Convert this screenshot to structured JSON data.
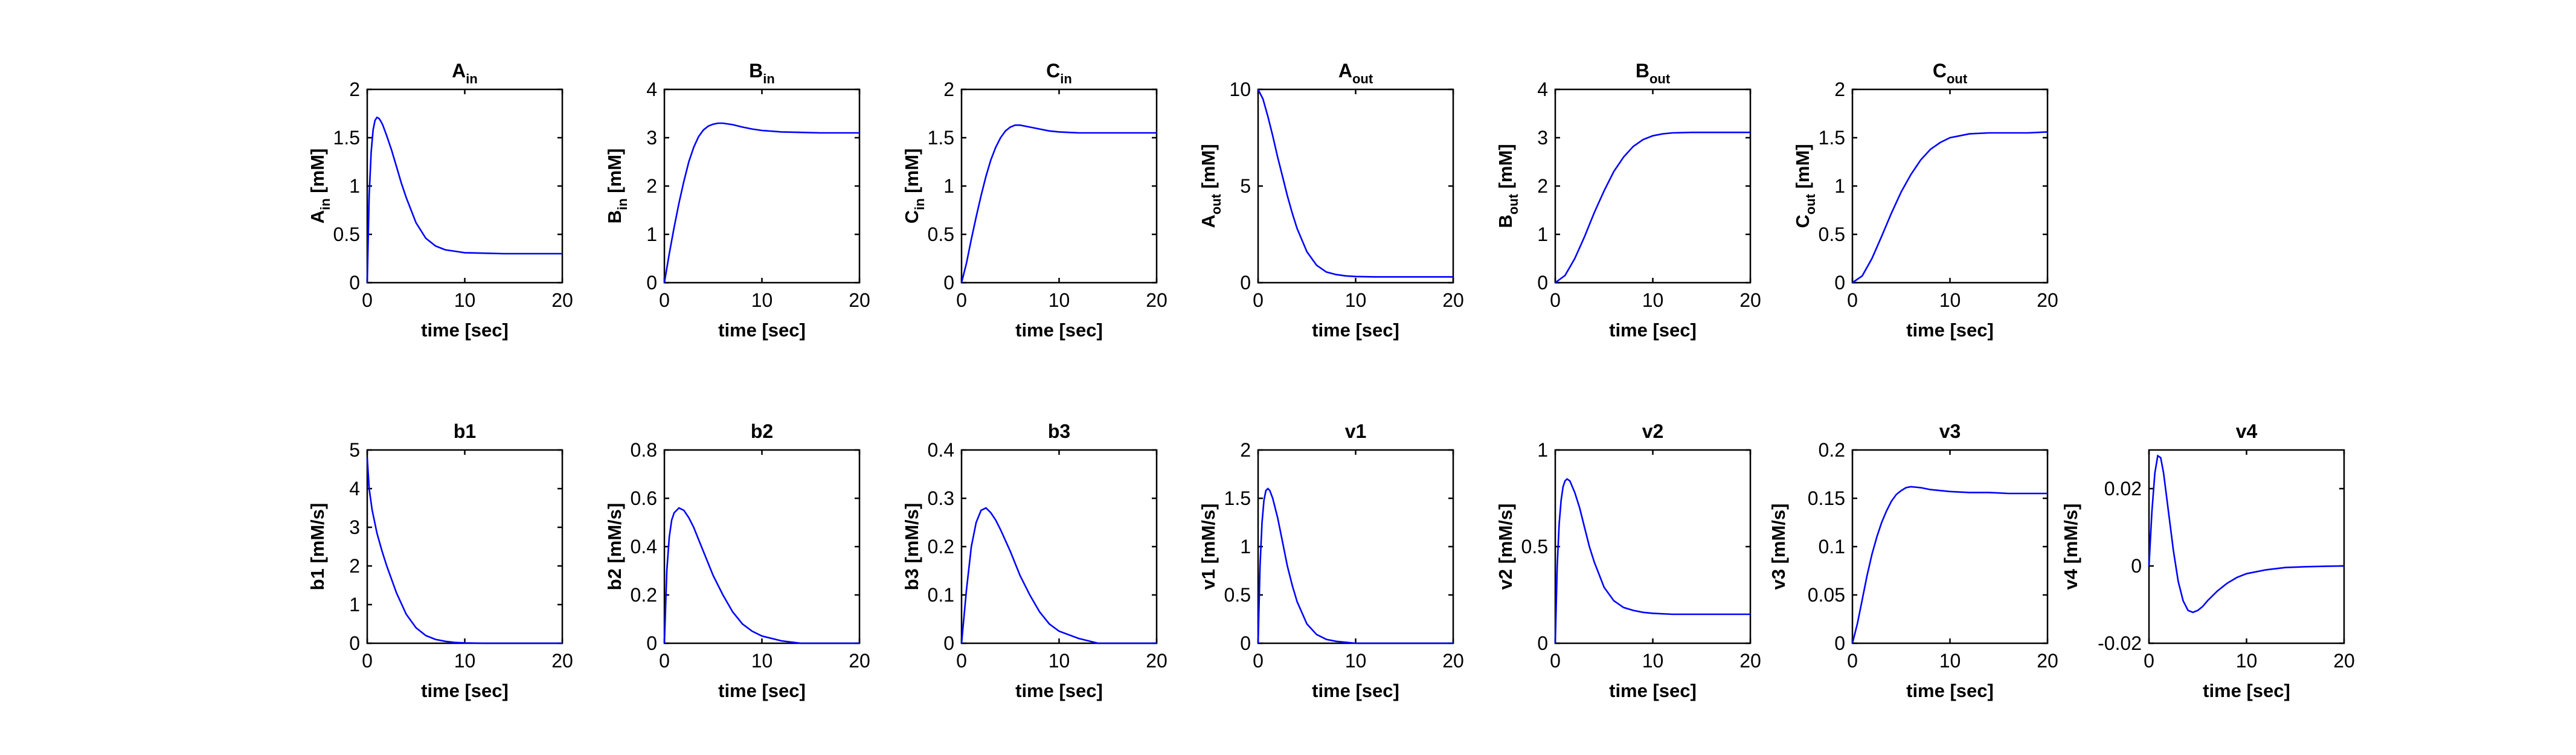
{
  "chart_data": [
    {
      "type": "line",
      "title": "A",
      "title_sub": "in",
      "xlabel": "time [sec]",
      "ylabel": "A",
      "ylabel_sub": "in",
      "ylabel_unit": " [mM]",
      "xlim": [
        0,
        20
      ],
      "ylim": [
        0,
        2
      ],
      "xticks": [
        "0",
        "10",
        "20"
      ],
      "yticks": [
        "0",
        "0.5",
        "1",
        "1.5",
        "2"
      ],
      "series": [
        {
          "x": [
            0,
            0.2,
            0.4,
            0.6,
            0.8,
            1,
            1.2,
            1.4,
            1.6,
            2,
            2.5,
            3,
            3.5,
            4,
            5,
            6,
            7,
            8,
            9,
            10,
            12,
            14,
            16,
            18,
            20
          ],
          "y": [
            0,
            0.9,
            1.35,
            1.58,
            1.68,
            1.71,
            1.7,
            1.67,
            1.63,
            1.52,
            1.37,
            1.2,
            1.03,
            0.88,
            0.62,
            0.46,
            0.38,
            0.34,
            0.325,
            0.31,
            0.305,
            0.3,
            0.3,
            0.3,
            0.3
          ]
        }
      ]
    },
    {
      "type": "line",
      "title": "B",
      "title_sub": "in",
      "xlabel": "time [sec]",
      "ylabel": "B",
      "ylabel_sub": "in",
      "ylabel_unit": " [mM]",
      "xlim": [
        0,
        20
      ],
      "ylim": [
        0,
        4
      ],
      "xticks": [
        "0",
        "10",
        "20"
      ],
      "yticks": [
        "0",
        "1",
        "2",
        "3",
        "4"
      ],
      "series": [
        {
          "x": [
            0,
            0.5,
            1,
            1.5,
            2,
            2.5,
            3,
            3.5,
            4,
            4.5,
            5,
            5.5,
            6,
            7,
            8,
            9,
            10,
            12,
            14,
            16,
            18,
            20
          ],
          "y": [
            0,
            0.6,
            1.15,
            1.65,
            2.1,
            2.5,
            2.8,
            3.02,
            3.16,
            3.24,
            3.28,
            3.3,
            3.3,
            3.27,
            3.22,
            3.18,
            3.15,
            3.12,
            3.11,
            3.1,
            3.1,
            3.1
          ]
        }
      ]
    },
    {
      "type": "line",
      "title": "C",
      "title_sub": "in",
      "xlabel": "time [sec]",
      "ylabel": "C",
      "ylabel_sub": "in",
      "ylabel_unit": " [mM]",
      "xlim": [
        0,
        20
      ],
      "ylim": [
        0,
        2
      ],
      "xticks": [
        "0",
        "10",
        "20"
      ],
      "yticks": [
        "0",
        "0.5",
        "1",
        "1.5",
        "2"
      ],
      "series": [
        {
          "x": [
            0,
            0.5,
            1,
            1.5,
            2,
            2.5,
            3,
            3.5,
            4,
            4.5,
            5,
            5.5,
            6,
            7,
            8,
            9,
            10,
            12,
            14,
            16,
            18,
            20
          ],
          "y": [
            0,
            0.2,
            0.45,
            0.68,
            0.9,
            1.1,
            1.27,
            1.4,
            1.5,
            1.57,
            1.61,
            1.63,
            1.63,
            1.61,
            1.59,
            1.57,
            1.56,
            1.55,
            1.55,
            1.55,
            1.55,
            1.55
          ]
        }
      ]
    },
    {
      "type": "line",
      "title": "A",
      "title_sub": "out",
      "xlabel": "time [sec]",
      "ylabel": "A",
      "ylabel_sub": "out",
      "ylabel_unit": " [mM]",
      "xlim": [
        0,
        20
      ],
      "ylim": [
        0,
        10
      ],
      "xticks": [
        "0",
        "10",
        "20"
      ],
      "yticks": [
        "0",
        "5",
        "10"
      ],
      "series": [
        {
          "x": [
            0,
            0.5,
            1,
            1.5,
            2,
            2.5,
            3,
            3.5,
            4,
            5,
            6,
            7,
            8,
            9,
            10,
            12,
            14,
            16,
            18,
            20
          ],
          "y": [
            10,
            9.5,
            8.6,
            7.6,
            6.5,
            5.5,
            4.5,
            3.6,
            2.8,
            1.6,
            0.9,
            0.55,
            0.42,
            0.35,
            0.32,
            0.3,
            0.3,
            0.3,
            0.3,
            0.3
          ]
        }
      ]
    },
    {
      "type": "line",
      "title": "B",
      "title_sub": "out",
      "xlabel": "time [sec]",
      "ylabel": "B",
      "ylabel_sub": "out",
      "ylabel_unit": " [mM]",
      "xlim": [
        0,
        20
      ],
      "ylim": [
        0,
        4
      ],
      "xticks": [
        "0",
        "10",
        "20"
      ],
      "yticks": [
        "0",
        "1",
        "2",
        "3",
        "4"
      ],
      "series": [
        {
          "x": [
            0,
            1,
            2,
            3,
            4,
            5,
            6,
            7,
            8,
            9,
            10,
            11,
            12,
            14,
            16,
            18,
            20
          ],
          "y": [
            0,
            0.15,
            0.5,
            0.95,
            1.45,
            1.9,
            2.3,
            2.6,
            2.82,
            2.96,
            3.04,
            3.08,
            3.1,
            3.11,
            3.11,
            3.11,
            3.11
          ]
        }
      ]
    },
    {
      "type": "line",
      "title": "C",
      "title_sub": "out",
      "xlabel": "time [sec]",
      "ylabel": "C",
      "ylabel_sub": "out",
      "ylabel_unit": " [mM]",
      "xlim": [
        0,
        20
      ],
      "ylim": [
        0,
        2
      ],
      "xticks": [
        "0",
        "10",
        "20"
      ],
      "yticks": [
        "0",
        "0.5",
        "1",
        "1.5",
        "2"
      ],
      "series": [
        {
          "x": [
            0,
            1,
            2,
            3,
            4,
            5,
            6,
            7,
            8,
            9,
            10,
            11,
            12,
            14,
            16,
            18,
            20
          ],
          "y": [
            0,
            0.07,
            0.25,
            0.48,
            0.72,
            0.94,
            1.12,
            1.27,
            1.38,
            1.45,
            1.5,
            1.52,
            1.54,
            1.55,
            1.55,
            1.55,
            1.56
          ]
        }
      ]
    },
    {
      "type": "line",
      "title": "b1",
      "xlabel": "time [sec]",
      "ylabel": "b1",
      "ylabel_unit": " [mM/s]",
      "xlim": [
        0,
        20
      ],
      "ylim": [
        0,
        5
      ],
      "xticks": [
        "0",
        "10",
        "20"
      ],
      "yticks": [
        "0",
        "1",
        "2",
        "3",
        "4",
        "5"
      ],
      "series": [
        {
          "x": [
            0,
            0.2,
            0.5,
            1,
            1.5,
            2,
            3,
            4,
            5,
            6,
            7,
            8,
            9,
            10,
            12,
            14,
            16,
            18,
            20
          ],
          "y": [
            4.8,
            4.0,
            3.45,
            2.85,
            2.4,
            2.0,
            1.3,
            0.75,
            0.4,
            0.2,
            0.1,
            0.05,
            0.02,
            0.01,
            0,
            0,
            0,
            0,
            0
          ]
        }
      ]
    },
    {
      "type": "line",
      "title": "b2",
      "xlabel": "time [sec]",
      "ylabel": "b2",
      "ylabel_unit": " [mM/s]",
      "xlim": [
        0,
        20
      ],
      "ylim": [
        0,
        0.8
      ],
      "xticks": [
        "0",
        "10",
        "20"
      ],
      "yticks": [
        "0",
        "0.2",
        "0.4",
        "0.6",
        "0.8"
      ],
      "series": [
        {
          "x": [
            0,
            0.25,
            0.5,
            0.75,
            1,
            1.5,
            2,
            2.5,
            3,
            3.5,
            4,
            5,
            6,
            7,
            8,
            9,
            10,
            12,
            14,
            16,
            18,
            20
          ],
          "y": [
            0,
            0.3,
            0.44,
            0.51,
            0.54,
            0.56,
            0.55,
            0.52,
            0.48,
            0.43,
            0.38,
            0.28,
            0.2,
            0.13,
            0.08,
            0.05,
            0.03,
            0.01,
            0,
            0,
            0,
            0
          ]
        }
      ]
    },
    {
      "type": "line",
      "title": "b3",
      "xlabel": "time [sec]",
      "ylabel": "b3",
      "ylabel_unit": " [mM/s]",
      "xlim": [
        0,
        20
      ],
      "ylim": [
        0,
        0.4
      ],
      "xticks": [
        "0",
        "10",
        "20"
      ],
      "yticks": [
        "0",
        "0.1",
        "0.2",
        "0.3",
        "0.4"
      ],
      "series": [
        {
          "x": [
            0,
            0.5,
            1,
            1.5,
            2,
            2.5,
            3,
            3.5,
            4,
            5,
            6,
            7,
            8,
            9,
            10,
            12,
            14,
            16,
            18,
            20
          ],
          "y": [
            0,
            0.11,
            0.2,
            0.25,
            0.275,
            0.28,
            0.27,
            0.255,
            0.235,
            0.19,
            0.14,
            0.1,
            0.065,
            0.04,
            0.025,
            0.01,
            0,
            0,
            0,
            0
          ]
        }
      ]
    },
    {
      "type": "line",
      "title": "v1",
      "xlabel": "time [sec]",
      "ylabel": "v1",
      "ylabel_unit": " [mM/s]",
      "xlim": [
        0,
        20
      ],
      "ylim": [
        0,
        2
      ],
      "xticks": [
        "0",
        "10",
        "20"
      ],
      "yticks": [
        "0",
        "0.5",
        "1",
        "1.5",
        "2"
      ],
      "series": [
        {
          "x": [
            0,
            0.2,
            0.4,
            0.6,
            0.8,
            1,
            1.2,
            1.5,
            2,
            2.5,
            3,
            3.5,
            4,
            5,
            6,
            7,
            8,
            9,
            10,
            12,
            14,
            16,
            18,
            20
          ],
          "y": [
            0,
            0.8,
            1.25,
            1.48,
            1.58,
            1.6,
            1.58,
            1.5,
            1.3,
            1.05,
            0.8,
            0.6,
            0.43,
            0.2,
            0.09,
            0.04,
            0.02,
            0.01,
            0,
            0,
            0,
            0,
            0,
            0
          ]
        }
      ]
    },
    {
      "type": "line",
      "title": "v2",
      "xlabel": "time [sec]",
      "ylabel": "v2",
      "ylabel_unit": " [mM/s]",
      "xlim": [
        0,
        20
      ],
      "ylim": [
        0,
        1
      ],
      "xticks": [
        "0",
        "10",
        "20"
      ],
      "yticks": [
        "0",
        "0.5",
        "1"
      ],
      "series": [
        {
          "x": [
            0,
            0.2,
            0.4,
            0.6,
            0.8,
            1,
            1.2,
            1.5,
            2,
            2.5,
            3,
            3.5,
            4,
            5,
            6,
            7,
            8,
            9,
            10,
            12,
            14,
            16,
            18,
            20
          ],
          "y": [
            0,
            0.4,
            0.62,
            0.74,
            0.81,
            0.84,
            0.85,
            0.84,
            0.78,
            0.7,
            0.6,
            0.5,
            0.42,
            0.29,
            0.22,
            0.185,
            0.17,
            0.16,
            0.155,
            0.15,
            0.15,
            0.15,
            0.15,
            0.15
          ]
        }
      ]
    },
    {
      "type": "line",
      "title": "v3",
      "xlabel": "time [sec]",
      "ylabel": "v3",
      "ylabel_unit": " [mM/s]",
      "xlim": [
        0,
        20
      ],
      "ylim": [
        0,
        0.2
      ],
      "xticks": [
        "0",
        "10",
        "20"
      ],
      "yticks": [
        "0",
        "0.05",
        "0.1",
        "0.15",
        "0.2"
      ],
      "series": [
        {
          "x": [
            0,
            0.5,
            1,
            1.5,
            2,
            2.5,
            3,
            3.5,
            4,
            4.5,
            5,
            5.5,
            6,
            7,
            8,
            9,
            10,
            12,
            14,
            16,
            18,
            20
          ],
          "y": [
            0,
            0.02,
            0.045,
            0.07,
            0.092,
            0.11,
            0.125,
            0.137,
            0.147,
            0.154,
            0.158,
            0.161,
            0.162,
            0.161,
            0.159,
            0.158,
            0.157,
            0.156,
            0.156,
            0.155,
            0.155,
            0.155
          ]
        }
      ]
    },
    {
      "type": "line",
      "title": "v4",
      "xlabel": "time [sec]",
      "ylabel": "v4",
      "ylabel_unit": " [mM/s]",
      "xlim": [
        0,
        20
      ],
      "ylim": [
        -0.02,
        0.03
      ],
      "xticks": [
        "0",
        "10",
        "20"
      ],
      "yticks": [
        "-0.02",
        "0",
        "0.02"
      ],
      "ytick_values": [
        -0.02,
        0,
        0.02
      ],
      "series": [
        {
          "x": [
            0,
            0.3,
            0.6,
            0.9,
            1.2,
            1.5,
            2,
            2.5,
            3,
            3.5,
            4,
            4.5,
            5,
            5.5,
            6,
            7,
            8,
            9,
            10,
            12,
            14,
            16,
            18,
            20
          ],
          "y": [
            0,
            0.014,
            0.024,
            0.0285,
            0.028,
            0.024,
            0.014,
            0.004,
            -0.004,
            -0.009,
            -0.0115,
            -0.012,
            -0.0115,
            -0.0105,
            -0.009,
            -0.0065,
            -0.0045,
            -0.003,
            -0.002,
            -0.001,
            -0.0004,
            -0.0002,
            -0.0001,
            0
          ]
        }
      ]
    }
  ]
}
